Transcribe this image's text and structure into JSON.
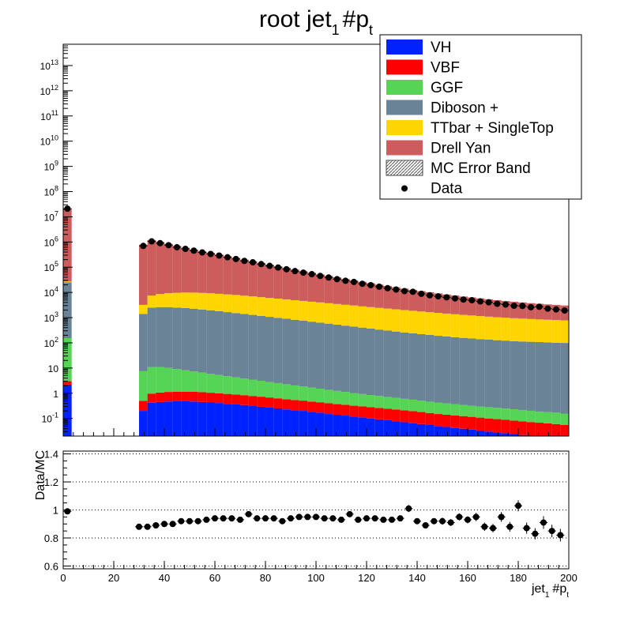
{
  "title": {
    "main": "root jet",
    "sub": "1",
    "tail": "#p",
    "tail_sub": "t"
  },
  "colors": {
    "VH": "#0022ff",
    "VBF": "#ff0000",
    "GGF": "#55d455",
    "Diboson": "#6b8396",
    "TTbar": "#ffd500",
    "DrellYan": "#cd5c5c",
    "data": "#000000"
  },
  "legend": {
    "placement": "top-right",
    "entries": [
      {
        "label": "VH",
        "key": "VH",
        "style": "fill"
      },
      {
        "label": "VBF",
        "key": "VBF",
        "style": "fill"
      },
      {
        "label": "GGF",
        "key": "GGF",
        "style": "fill"
      },
      {
        "label": "Diboson +",
        "key": "Diboson",
        "style": "fill"
      },
      {
        "label": "TTbar + SingleTop",
        "key": "TTbar",
        "style": "fill"
      },
      {
        "label": "Drell Yan",
        "key": "DrellYan",
        "style": "fill"
      },
      {
        "label": "MC Error Band",
        "key": "band",
        "style": "hatch"
      },
      {
        "label": "Data",
        "key": "data",
        "style": "marker"
      }
    ]
  },
  "chart_data": [
    {
      "type": "area",
      "subtype": "stacked-histogram",
      "log_y": true,
      "xlim": [
        0,
        200
      ],
      "ylim": [
        0.02,
        70000000000000
      ],
      "bin_width": 3.333,
      "y_tick_labels": [
        "10^-1",
        "1",
        "10",
        "10^2",
        "10^3",
        "10^4",
        "10^5",
        "10^6",
        "10^7",
        "10^8",
        "10^9",
        "10^10",
        "10^11",
        "10^12",
        "10^13"
      ],
      "x_bin_centers": [
        1.67,
        31.67,
        35.0,
        38.33,
        41.67,
        45.0,
        48.33,
        51.67,
        55.0,
        58.33,
        61.67,
        65.0,
        68.33,
        71.67,
        75.0,
        78.33,
        81.67,
        85.0,
        88.33,
        91.67,
        95.0,
        98.33,
        101.67,
        105.0,
        108.33,
        111.67,
        115.0,
        118.33,
        121.67,
        125.0,
        128.33,
        131.67,
        135.0,
        138.33,
        141.67,
        145.0,
        148.33,
        151.67,
        155.0,
        158.33,
        161.67,
        165.0,
        168.33,
        171.67,
        175.0,
        178.33,
        181.67,
        185.0,
        188.33,
        191.67,
        195.0,
        198.33
      ],
      "series": [
        {
          "name": "VH",
          "values": [
            2.2,
            0.2,
            0.42,
            0.45,
            0.47,
            0.48,
            0.48,
            0.47,
            0.45,
            0.43,
            0.41,
            0.38,
            0.36,
            0.34,
            0.31,
            0.29,
            0.27,
            0.25,
            0.23,
            0.21,
            0.2,
            0.18,
            0.17,
            0.15,
            0.14,
            0.13,
            0.12,
            0.11,
            0.1,
            0.092,
            0.085,
            0.078,
            0.071,
            0.065,
            0.06,
            0.055,
            0.05,
            0.046,
            0.042,
            0.039,
            0.036,
            0.033,
            0.03,
            0.028,
            0.026,
            0.024,
            0.022,
            0.02,
            0.019,
            0.018,
            0.017,
            0.016
          ]
        },
        {
          "name": "VBF",
          "values": [
            0.8,
            0.3,
            0.55,
            0.62,
            0.66,
            0.68,
            0.68,
            0.67,
            0.65,
            0.62,
            0.59,
            0.56,
            0.53,
            0.5,
            0.47,
            0.44,
            0.41,
            0.38,
            0.35,
            0.33,
            0.31,
            0.29,
            0.27,
            0.25,
            0.23,
            0.22,
            0.2,
            0.19,
            0.18,
            0.17,
            0.16,
            0.15,
            0.14,
            0.13,
            0.12,
            0.11,
            0.1,
            0.095,
            0.09,
            0.085,
            0.08,
            0.075,
            0.07,
            0.066,
            0.062,
            0.058,
            0.055,
            0.052,
            0.049,
            0.046,
            0.043,
            0.04
          ]
        },
        {
          "name": "GGF",
          "values": [
            150,
            7,
            10,
            10,
            9,
            8,
            7,
            6.2,
            5.5,
            4.8,
            4.3,
            3.8,
            3.4,
            3.0,
            2.7,
            2.4,
            2.1,
            1.9,
            1.7,
            1.5,
            1.35,
            1.2,
            1.08,
            0.97,
            0.87,
            0.78,
            0.7,
            0.63,
            0.57,
            0.52,
            0.47,
            0.43,
            0.39,
            0.36,
            0.33,
            0.3,
            0.28,
            0.26,
            0.24,
            0.22,
            0.2,
            0.19,
            0.18,
            0.17,
            0.16,
            0.15,
            0.14,
            0.13,
            0.12,
            0.115,
            0.11,
            0.1
          ]
        },
        {
          "name": "Diboson +",
          "values": [
            25000,
            1400,
            2500,
            2600,
            2600,
            2500,
            2400,
            2250,
            2100,
            1950,
            1800,
            1650,
            1520,
            1400,
            1280,
            1170,
            1070,
            980,
            900,
            820,
            750,
            690,
            630,
            575,
            525,
            480,
            440,
            400,
            365,
            335,
            305,
            280,
            258,
            238,
            220,
            205,
            190,
            178,
            167,
            157,
            148,
            140,
            133,
            127,
            122,
            117,
            113,
            110,
            107,
            104,
            101,
            99
          ]
        },
        {
          "name": "TTbar + SingleTop",
          "values": [
            2000,
            1800,
            5000,
            6000,
            6800,
            7200,
            7500,
            7600,
            7500,
            7300,
            7000,
            6700,
            6400,
            6000,
            5700,
            5300,
            5000,
            4700,
            4400,
            4100,
            3850,
            3600,
            3400,
            3150,
            2950,
            2750,
            2600,
            2400,
            2250,
            2100,
            1980,
            1850,
            1740,
            1630,
            1530,
            1440,
            1350,
            1270,
            1200,
            1130,
            1070,
            1010,
            960,
            910,
            870,
            830,
            800,
            770,
            740,
            720,
            700,
            680
          ]
        },
        {
          "name": "Drell Yan",
          "values": [
            21000000,
            780000,
            1190000,
            1000000,
            830000,
            690000,
            580000,
            495000,
            420000,
            360000,
            310000,
            265000,
            225000,
            192000,
            164000,
            141000,
            121000,
            104000,
            89000,
            76000,
            65000,
            56000,
            48000,
            41500,
            36000,
            31000,
            27000,
            23500,
            20500,
            17900,
            15700,
            13800,
            12100,
            10700,
            9500,
            8500,
            7600,
            6850,
            6200,
            5600,
            5100,
            4650,
            4250,
            3900,
            3600,
            3330,
            3100,
            2880,
            2700,
            2530,
            2380,
            2250
          ]
        }
      ],
      "data_x": [
        1.67,
        31.67,
        35.0,
        38.33,
        41.67,
        45.0,
        48.33,
        51.67,
        55.0,
        58.33,
        61.67,
        65.0,
        68.33,
        71.67,
        75.0,
        78.33,
        81.67,
        85.0,
        88.33,
        91.67,
        95.0,
        98.33,
        101.67,
        105.0,
        108.33,
        111.67,
        115.0,
        118.33,
        121.67,
        125.0,
        128.33,
        131.67,
        135.0,
        138.33,
        141.67,
        145.0,
        148.33,
        151.67,
        155.0,
        158.33,
        161.67,
        165.0,
        168.33,
        171.67,
        175.0,
        178.33,
        181.67,
        185.0,
        188.33,
        191.67,
        195.0,
        198.33
      ],
      "data_y": [
        21000000,
        700000,
        1060000,
        900000,
        750000,
        620000,
        535000,
        455000,
        385000,
        335000,
        290000,
        248000,
        212000,
        178000,
        157000,
        133000,
        113000,
        97000,
        83000,
        70000,
        61000,
        53000,
        45000,
        39000,
        33700,
        29000,
        26000,
        22000,
        19400,
        16900,
        14700,
        13000,
        11300,
        10600,
        8800,
        7700,
        7000,
        6400,
        5800,
        5200,
        4900,
        4400,
        4050,
        3550,
        3300,
        2960,
        2900,
        2580,
        2700,
        2280,
        2120,
        1910
      ]
    },
    {
      "type": "scatter",
      "subtype": "ratio",
      "ylabel": "Data/MC",
      "xlabel": "jet_1 #p_t",
      "xlim": [
        0,
        200
      ],
      "ylim": [
        0.58,
        1.42
      ],
      "y_ticks": [
        0.6,
        0.8,
        1,
        1.2,
        1.4
      ],
      "y_tick_labels": [
        "0.6",
        "0.8",
        "1",
        "1.2",
        "1.4"
      ],
      "x_ticks": [
        0,
        20,
        40,
        60,
        80,
        100,
        120,
        140,
        160,
        180,
        200
      ],
      "x_tick_labels": [
        "0",
        "20",
        "40",
        "60",
        "80",
        "100",
        "120",
        "140",
        "160",
        "180",
        "200"
      ],
      "dotted_grid": [
        0.6,
        0.8,
        1.0,
        1.2,
        1.4
      ],
      "x": [
        1.67,
        30.0,
        33.33,
        36.67,
        40.0,
        43.33,
        46.67,
        50.0,
        53.33,
        56.67,
        60.0,
        63.33,
        66.67,
        70.0,
        73.33,
        76.67,
        80.0,
        83.33,
        86.67,
        90.0,
        93.33,
        96.67,
        100.0,
        103.33,
        106.67,
        110.0,
        113.33,
        116.67,
        120.0,
        123.33,
        126.67,
        130.0,
        133.33,
        136.67,
        140.0,
        143.33,
        146.67,
        150.0,
        153.33,
        156.67,
        160.0,
        163.33,
        166.67,
        170.0,
        173.33,
        176.67,
        180.0,
        183.33,
        186.67,
        190.0,
        193.33,
        196.67
      ],
      "y": [
        0.99,
        0.88,
        0.88,
        0.89,
        0.9,
        0.9,
        0.92,
        0.92,
        0.92,
        0.93,
        0.94,
        0.94,
        0.94,
        0.93,
        0.97,
        0.94,
        0.94,
        0.94,
        0.92,
        0.94,
        0.95,
        0.95,
        0.95,
        0.94,
        0.94,
        0.93,
        0.97,
        0.93,
        0.94,
        0.94,
        0.93,
        0.93,
        0.94,
        1.01,
        0.92,
        0.89,
        0.92,
        0.92,
        0.91,
        0.95,
        0.93,
        0.95,
        0.88,
        0.87,
        0.95,
        0.88,
        1.03,
        0.87,
        0.83,
        0.91,
        0.85,
        0.82
      ],
      "yerr": [
        0.01,
        0.01,
        0.01,
        0.01,
        0.01,
        0.01,
        0.01,
        0.01,
        0.01,
        0.01,
        0.01,
        0.01,
        0.01,
        0.01,
        0.01,
        0.01,
        0.01,
        0.01,
        0.01,
        0.01,
        0.015,
        0.015,
        0.015,
        0.015,
        0.015,
        0.015,
        0.015,
        0.015,
        0.015,
        0.015,
        0.015,
        0.02,
        0.02,
        0.025,
        0.02,
        0.02,
        0.02,
        0.025,
        0.025,
        0.025,
        0.025,
        0.03,
        0.03,
        0.03,
        0.035,
        0.035,
        0.04,
        0.04,
        0.04,
        0.045,
        0.045,
        0.045
      ]
    }
  ]
}
